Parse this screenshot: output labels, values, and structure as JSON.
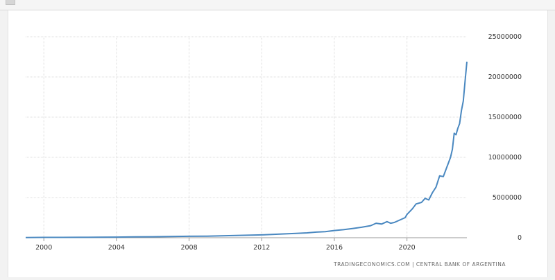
{
  "header": {
    "title": ""
  },
  "source_text": "TRADINGECONOMICS.COM  |  CENTRAL BANK OF ARGENTINA",
  "colors": {
    "line": "#4a88c0",
    "grid": "#dcdcdc",
    "axis": "#999999"
  },
  "chart_data": {
    "type": "line",
    "title": "",
    "xlabel": "",
    "ylabel": "",
    "x_ticks": [
      "2000",
      "2004",
      "2008",
      "2012",
      "2016",
      "2020"
    ],
    "x_tick_years": [
      2000,
      2004,
      2008,
      2012,
      2016,
      2020
    ],
    "y_ticks": [
      "0",
      "5000000",
      "10000000",
      "15000000",
      "20000000",
      "25000000"
    ],
    "y_tick_values": [
      0,
      5000000,
      10000000,
      15000000,
      20000000,
      25000000
    ],
    "xlim": [
      1999.0,
      2023.3
    ],
    "ylim": [
      0,
      25000000
    ],
    "grid": true,
    "legend": "none",
    "series": [
      {
        "x": [
          1999.0,
          2000.0,
          2001.0,
          2002.0,
          2003.0,
          2004.0,
          2005.0,
          2006.0,
          2007.0,
          2008.0,
          2009.0,
          2010.0,
          2011.0,
          2012.0,
          2013.0,
          2014.0,
          2014.5,
          2015.0,
          2015.5,
          2016.0,
          2016.5,
          2017.0,
          2017.5,
          2018.0,
          2018.3,
          2018.6,
          2018.9,
          2019.1,
          2019.3,
          2019.6,
          2019.9,
          2020.0,
          2020.3,
          2020.5,
          2020.8,
          2021.0,
          2021.2,
          2021.4,
          2021.6,
          2021.8,
          2022.0,
          2022.2,
          2022.3,
          2022.4,
          2022.5,
          2022.6,
          2022.7,
          2022.8,
          2022.9,
          2023.0,
          2023.1,
          2023.2,
          2023.3
        ],
        "y": [
          30000,
          40000,
          40000,
          50000,
          60000,
          80000,
          100000,
          120000,
          150000,
          180000,
          200000,
          250000,
          300000,
          350000,
          450000,
          550000,
          600000,
          700000,
          750000,
          900000,
          1000000,
          1150000,
          1300000,
          1500000,
          1800000,
          1700000,
          2000000,
          1800000,
          1900000,
          2200000,
          2500000,
          2900000,
          3600000,
          4200000,
          4400000,
          4900000,
          4700000,
          5600000,
          6300000,
          7700000,
          7600000,
          8800000,
          9400000,
          10000000,
          11000000,
          13000000,
          12800000,
          13600000,
          14200000,
          15800000,
          17000000,
          19500000,
          21900000
        ]
      }
    ]
  }
}
